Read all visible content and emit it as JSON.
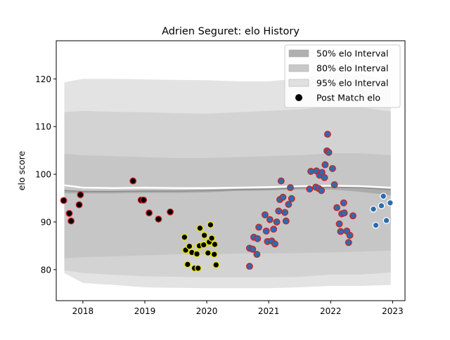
{
  "chart_data": {
    "type": "scatter",
    "title": "Adrien Seguret: elo History",
    "xlabel": "",
    "ylabel": "elo score",
    "xlim": [
      2017.57,
      2023.2
    ],
    "ylim": [
      73.5,
      128
    ],
    "x_ticks": [
      2018,
      2019,
      2020,
      2021,
      2022,
      2023
    ],
    "x_tick_labels": [
      "2018",
      "2019",
      "2020",
      "2021",
      "2022",
      "2023"
    ],
    "y_ticks": [
      80,
      90,
      100,
      110,
      120
    ],
    "y_tick_labels": [
      "80",
      "90",
      "100",
      "110",
      "120"
    ],
    "grid": false,
    "legend_position": "top-right",
    "legend": [
      {
        "label": "50% elo Interval",
        "kind": "patch",
        "color": "#b0b0b0"
      },
      {
        "label": "80% elo Interval",
        "kind": "patch",
        "color": "#c8c8c8"
      },
      {
        "label": "95% elo Interval",
        "kind": "patch",
        "color": "#e0e0e0"
      },
      {
        "label": "Post Match elo",
        "kind": "marker",
        "color": "#000000"
      }
    ],
    "bands": {
      "x": [
        2017.7,
        2018.0,
        2018.5,
        2019.0,
        2019.5,
        2020.0,
        2020.5,
        2021.0,
        2021.5,
        2022.0,
        2022.5,
        2022.97
      ],
      "median": [
        97.7,
        97.2,
        97.1,
        97.2,
        97.1,
        97.1,
        97.2,
        97.3,
        97.5,
        97.6,
        97.5,
        97.2
      ],
      "p50_upper": [
        96.6,
        96.4,
        96.4,
        96.5,
        96.5,
        96.6,
        96.8,
        96.9,
        97.2,
        97.3,
        97.2,
        96.8
      ],
      "p50_lower": [
        96.0,
        96.0,
        96.0,
        96.1,
        96.1,
        96.2,
        96.5,
        96.6,
        96.8,
        96.8,
        96.3,
        95.6
      ],
      "p80_upper": [
        104.3,
        104.0,
        103.8,
        103.6,
        103.4,
        103.4,
        103.6,
        103.8,
        104.0,
        104.4,
        104.4,
        104.0
      ],
      "p80_lower": [
        82.4,
        82.6,
        82.8,
        83.0,
        83.2,
        83.2,
        83.4,
        83.4,
        83.5,
        83.6,
        83.8,
        84.0
      ],
      "p95_upper": [
        113.0,
        113.3,
        113.1,
        113.0,
        112.8,
        112.7,
        113.0,
        113.3,
        113.6,
        114.2,
        114.0,
        113.2
      ],
      "p95_lower": [
        79.9,
        79.3,
        78.9,
        78.6,
        78.5,
        78.4,
        78.4,
        78.4,
        78.5,
        79.0,
        79.0,
        79.4
      ],
      "outer_upper": [
        119.3,
        120.0,
        120.0,
        119.9,
        119.8,
        119.7,
        119.5,
        119.5,
        120.1,
        121.4,
        121.0,
        119.4
      ],
      "outer_lower": [
        79.3,
        77.2,
        76.8,
        76.3,
        76.2,
        76.1,
        76.1,
        76.1,
        76.3,
        76.6,
        76.6,
        76.8
      ]
    },
    "series": [
      {
        "fill": "#000000",
        "edge": "#cc2222",
        "points": [
          [
            2017.69,
            94.5
          ],
          [
            2017.78,
            91.8
          ],
          [
            2017.81,
            90.2
          ],
          [
            2017.94,
            93.6
          ],
          [
            2017.96,
            95.7
          ],
          [
            2018.81,
            98.6
          ],
          [
            2018.94,
            94.6
          ],
          [
            2018.98,
            94.6
          ],
          [
            2019.07,
            91.9
          ],
          [
            2019.22,
            90.6
          ],
          [
            2019.41,
            92.1
          ]
        ]
      },
      {
        "fill": "#000000",
        "edge": "#e8e800",
        "points": [
          [
            2019.64,
            86.8
          ],
          [
            2019.66,
            84.1
          ],
          [
            2019.69,
            81.1
          ],
          [
            2019.72,
            84.9
          ],
          [
            2019.76,
            83.6
          ],
          [
            2019.8,
            80.3
          ],
          [
            2019.84,
            83.3
          ],
          [
            2019.86,
            80.3
          ],
          [
            2019.88,
            85.0
          ],
          [
            2019.89,
            88.7
          ],
          [
            2019.95,
            85.2
          ],
          [
            2019.96,
            87.2
          ],
          [
            2020.02,
            83.5
          ],
          [
            2020.04,
            85.8
          ],
          [
            2020.06,
            89.4
          ],
          [
            2020.08,
            86.6
          ],
          [
            2020.12,
            83.2
          ],
          [
            2020.13,
            85.3
          ],
          [
            2020.15,
            81.0
          ]
        ]
      },
      {
        "fill": "#2b6cb0",
        "edge": "#cc2222",
        "points": [
          [
            2020.69,
            80.7
          ],
          [
            2020.69,
            84.5
          ],
          [
            2020.74,
            84.3
          ],
          [
            2020.76,
            86.8
          ],
          [
            2020.81,
            83.2
          ],
          [
            2020.82,
            86.5
          ],
          [
            2020.84,
            88.9
          ],
          [
            2020.94,
            91.5
          ],
          [
            2020.96,
            88.1
          ],
          [
            2020.98,
            85.9
          ],
          [
            2021.02,
            90.5
          ],
          [
            2021.05,
            86.0
          ],
          [
            2021.08,
            88.5
          ],
          [
            2021.1,
            85.4
          ],
          [
            2021.13,
            90.0
          ],
          [
            2021.16,
            92.3
          ],
          [
            2021.18,
            94.7
          ],
          [
            2021.2,
            98.6
          ],
          [
            2021.23,
            95.2
          ],
          [
            2021.26,
            92.0
          ],
          [
            2021.28,
            90.2
          ],
          [
            2021.32,
            93.7
          ],
          [
            2021.35,
            97.2
          ],
          [
            2021.37,
            94.9
          ],
          [
            2021.66,
            96.9
          ],
          [
            2021.68,
            100.6
          ],
          [
            2021.76,
            97.3
          ],
          [
            2021.77,
            100.7
          ],
          [
            2021.81,
            97.0
          ],
          [
            2021.82,
            99.8
          ],
          [
            2021.85,
            96.6
          ],
          [
            2021.86,
            100.4
          ],
          [
            2021.9,
            99.3
          ],
          [
            2021.91,
            102.0
          ],
          [
            2021.94,
            104.9
          ],
          [
            2021.95,
            108.4
          ],
          [
            2021.97,
            104.6
          ],
          [
            2022.03,
            101.2
          ],
          [
            2022.06,
            97.8
          ],
          [
            2022.1,
            93.0
          ],
          [
            2022.14,
            89.6
          ],
          [
            2022.16,
            88.0
          ],
          [
            2022.18,
            91.7
          ],
          [
            2022.21,
            94.0
          ],
          [
            2022.22,
            91.9
          ],
          [
            2022.26,
            88.1
          ],
          [
            2022.29,
            85.7
          ],
          [
            2022.31,
            87.2
          ],
          [
            2022.36,
            91.3
          ]
        ]
      },
      {
        "fill": "#2b6cb0",
        "edge": "#ffffff",
        "points": [
          [
            2022.69,
            92.7
          ],
          [
            2022.73,
            89.3
          ],
          [
            2022.82,
            93.4
          ],
          [
            2022.85,
            95.4
          ],
          [
            2022.9,
            90.3
          ],
          [
            2022.96,
            94.0
          ]
        ]
      }
    ]
  }
}
